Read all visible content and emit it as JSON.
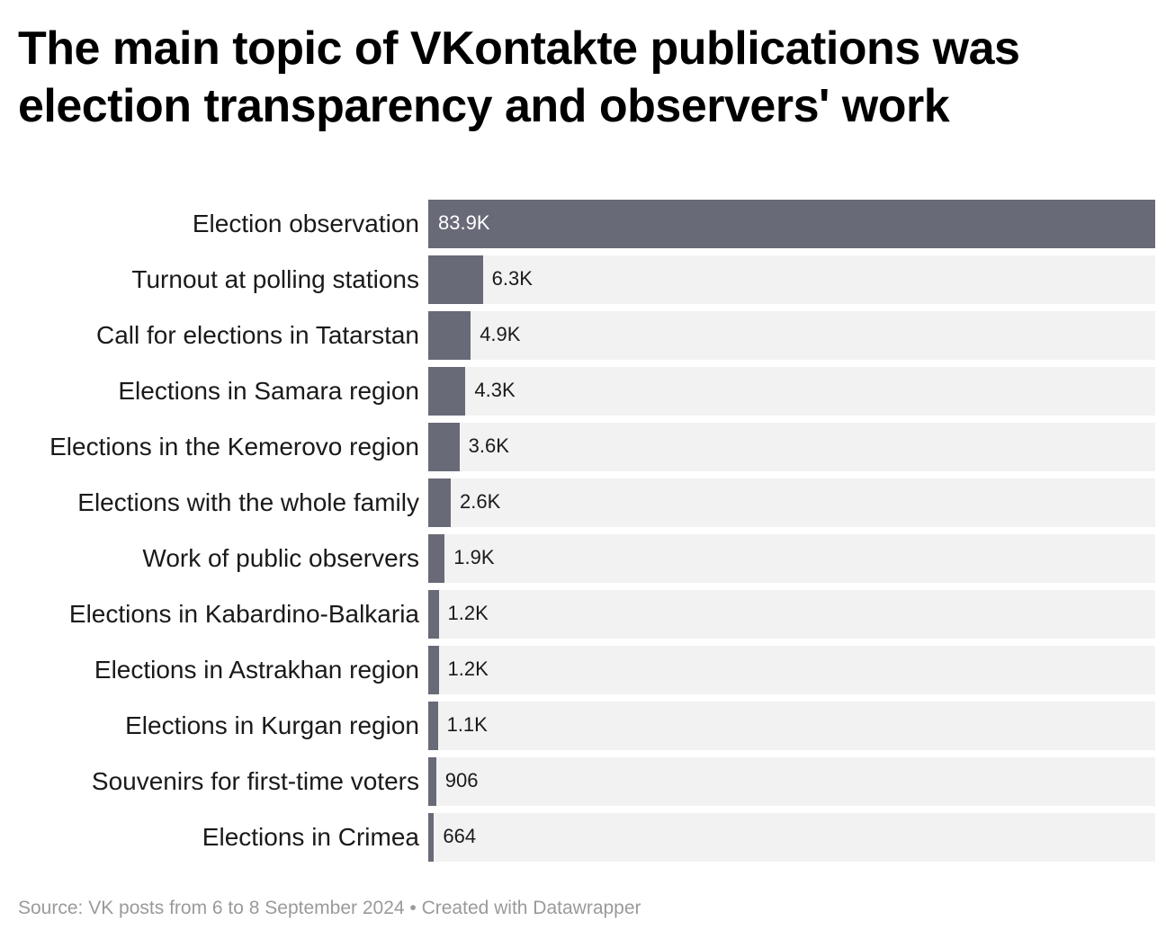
{
  "title": "The main topic of VKontakte publications was election transparency and observers' work",
  "source": "Source: VK posts from 6 to 8 September 2024 • Created with Datawrapper",
  "colors": {
    "bar": "#686a78",
    "track": "#f2f2f2",
    "source_text": "#9a9a9a"
  },
  "chart_data": {
    "type": "bar",
    "orientation": "horizontal",
    "categories": [
      "Election observation",
      "Turnout at polling stations",
      "Call for elections in Tatarstan",
      "Elections in Samara region",
      "Elections in the Kemerovo region",
      "Elections with the whole family",
      "Work of public observers",
      "Elections in Kabardino-Balkaria",
      "Elections in Astrakhan region",
      "Elections in Kurgan region",
      "Souvenirs for first-time voters",
      "Elections in Crimea"
    ],
    "values": [
      83900,
      6300,
      4900,
      4300,
      3600,
      2600,
      1900,
      1200,
      1200,
      1100,
      906,
      664
    ],
    "value_labels": [
      "83.9K",
      "6.3K",
      "4.9K",
      "4.3K",
      "3.6K",
      "2.6K",
      "1.9K",
      "1.2K",
      "1.2K",
      "1.1K",
      "906",
      "664"
    ],
    "xlim": [
      0,
      83900
    ],
    "grid": false,
    "legend": "none"
  }
}
